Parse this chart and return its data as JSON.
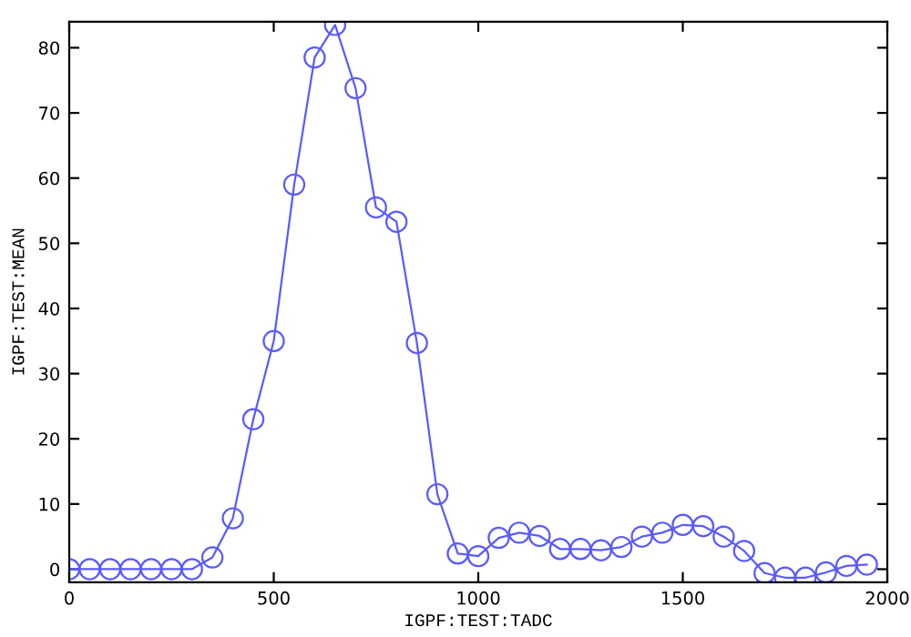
{
  "chart_data": {
    "type": "line",
    "xlabel": "IGPF:TEST:TADC",
    "ylabel": "IGPF:TEST:MEAN",
    "x": [
      0,
      50,
      100,
      150,
      200,
      250,
      300,
      350,
      400,
      450,
      500,
      550,
      600,
      650,
      700,
      750,
      800,
      850,
      900,
      950,
      1000,
      1050,
      1100,
      1150,
      1200,
      1250,
      1300,
      1350,
      1400,
      1450,
      1500,
      1550,
      1600,
      1650,
      1700,
      1750,
      1800,
      1850,
      1900,
      1950
    ],
    "series": [
      {
        "color": "#5a5aff",
        "values": [
          0,
          0,
          0,
          0,
          0,
          0,
          0,
          1.8,
          7.8,
          23,
          35,
          59,
          78.5,
          83.5,
          73.8,
          55.5,
          53.3,
          34.7,
          11.5,
          2.4,
          2.0,
          4.8,
          5.6,
          5.1,
          3.1,
          3.1,
          2.9,
          3.4,
          5.0,
          5.6,
          6.8,
          6.6,
          5.0,
          2.8,
          -0.6,
          -1.3,
          -1.3,
          -0.5,
          0.5,
          0.7
        ]
      }
    ],
    "xlim": [
      0,
      2000
    ],
    "xticks": [
      0,
      500,
      1000,
      1500,
      2000
    ],
    "ylim": [
      -2,
      84
    ],
    "yticks": [
      0,
      10,
      20,
      30,
      40,
      50,
      60,
      70,
      80
    ],
    "marker": "circle",
    "line_style": "solid",
    "grid": false,
    "legend": false
  }
}
